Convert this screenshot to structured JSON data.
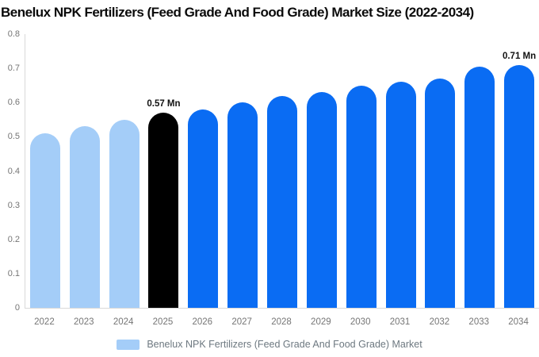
{
  "title": "Benelux NPK Fertilizers (Feed Grade And Food Grade) Market Size (2022-2034)",
  "chart_data": {
    "type": "bar",
    "title": "Benelux NPK Fertilizers (Feed Grade And Food Grade) Market Size (2022-2034)",
    "categories": [
      "2022",
      "2023",
      "2024",
      "2025",
      "2026",
      "2027",
      "2028",
      "2029",
      "2030",
      "2031",
      "2032",
      "2033",
      "2034"
    ],
    "values": [
      0.51,
      0.53,
      0.55,
      0.57,
      0.58,
      0.6,
      0.62,
      0.63,
      0.65,
      0.66,
      0.67,
      0.705,
      0.71
    ],
    "unit": "Mn",
    "bar_colors": [
      "#a4cdf8",
      "#a4cdf8",
      "#a4cdf8",
      "#000000",
      "#0a6cf3",
      "#0a6cf3",
      "#0a6cf3",
      "#0a6cf3",
      "#0a6cf3",
      "#0a6cf3",
      "#0a6cf3",
      "#0a6cf3",
      "#0a6cf3"
    ],
    "data_labels": [
      {
        "category": "2025",
        "text": "0.57 Mn"
      },
      {
        "category": "2034",
        "text": "0.71 Mn"
      }
    ],
    "xlabel": "",
    "ylabel": "",
    "ylim": [
      0,
      0.8
    ],
    "yticks": [
      "0.8",
      "0.7",
      "0.6",
      "0.5",
      "0.4",
      "0.3",
      "0.2",
      "0.1",
      "0"
    ],
    "grid": false,
    "legend": {
      "position": "bottom-center",
      "label": "Benelux NPK Fertilizers (Feed Grade And Food Grade) Market",
      "swatch_color": "#a4cdf8"
    }
  },
  "colors": {
    "background": "#ffffff",
    "axis_line": "#d9d9d9",
    "tick_text": "#757575",
    "title_text": "#0b0b0b",
    "legend_text": "#6d7880",
    "highlight_bar": "#000000",
    "forecast_bar": "#0a6cf3",
    "history_bar": "#a4cdf8"
  }
}
